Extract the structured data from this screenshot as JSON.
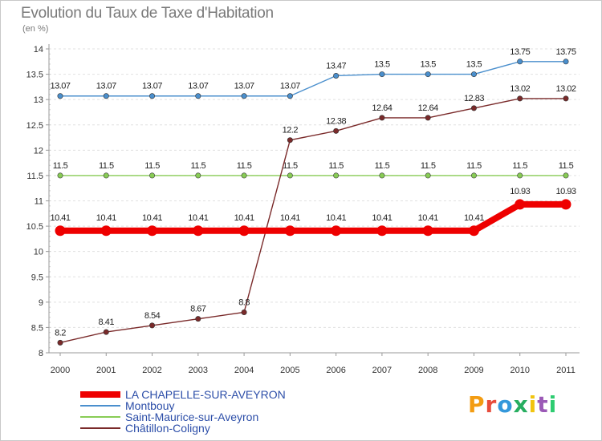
{
  "title": "Evolution du Taux de Taxe d'Habitation",
  "subtitle": "(en %)",
  "colors": {
    "axis": "#999999",
    "grid": "#e0e0e0",
    "label": "#333333",
    "legend_text": "#2b4da8"
  },
  "chart_data": {
    "type": "line",
    "title": "Evolution du Taux de Taxe d'Habitation",
    "subtitle": "(en %)",
    "x": [
      "2000",
      "2001",
      "2002",
      "2003",
      "2004",
      "2005",
      "2006",
      "2007",
      "2008",
      "2009",
      "2010",
      "2011"
    ],
    "ylim": [
      8,
      14
    ],
    "yticks": [
      "8",
      "8.5",
      "9",
      "9.5",
      "10",
      "10.5",
      "11",
      "11.5",
      "12",
      "12.5",
      "13",
      "13.5",
      "14"
    ],
    "grid": "horizontal dashed",
    "legend_position": "bottom-left",
    "series": [
      {
        "name": "LA CHAPELLE-SUR-AVEYRON",
        "color": "#ee0000",
        "values": [
          10.41,
          10.41,
          10.41,
          10.41,
          10.41,
          10.41,
          10.41,
          10.41,
          10.41,
          10.41,
          10.93,
          10.93
        ],
        "labels": [
          "10.41",
          "10.41",
          "10.41",
          "10.41",
          "10.41",
          "10.41",
          "10.41",
          "10.41",
          "10.41",
          "10.41",
          "10.93",
          "10.93"
        ]
      },
      {
        "name": "Montbouy",
        "color": "#4a8fcd",
        "values": [
          13.07,
          13.07,
          13.07,
          13.07,
          13.07,
          13.07,
          13.47,
          13.5,
          13.5,
          13.5,
          13.75,
          13.75
        ],
        "labels": [
          "13.07",
          "13.07",
          "13.07",
          "13.07",
          "13.07",
          "13.07",
          "13.47",
          "13.5",
          "13.5",
          "13.5",
          "13.75",
          "13.75"
        ]
      },
      {
        "name": "Saint-Maurice-sur-Aveyron",
        "color": "#88cc55",
        "values": [
          11.5,
          11.5,
          11.5,
          11.5,
          11.5,
          11.5,
          11.5,
          11.5,
          11.5,
          11.5,
          11.5,
          11.5
        ],
        "labels": [
          "11.5",
          "11.5",
          "11.5",
          "11.5",
          "11.5",
          "11.5",
          "11.5",
          "11.5",
          "11.5",
          "11.5",
          "11.5",
          "11.5"
        ]
      },
      {
        "name": "Châtillon-Coligny",
        "color": "#7a2a2a",
        "values": [
          8.2,
          8.41,
          8.54,
          8.67,
          8.8,
          12.2,
          12.38,
          12.64,
          12.64,
          12.83,
          13.02,
          13.02
        ],
        "labels": [
          "8.2",
          "8.41",
          "8.54",
          "8.67",
          "8.8",
          "12.2",
          "12.38",
          "12.64",
          "12.64",
          "12.83",
          "13.02",
          "13.02"
        ]
      }
    ]
  },
  "logo": {
    "text": "Proxiti",
    "letter_colors": [
      "#f39c12",
      "#e74c3c",
      "#3498db",
      "#27ae60",
      "#f1c40f",
      "#9b59b6",
      "#2ecc71"
    ]
  }
}
